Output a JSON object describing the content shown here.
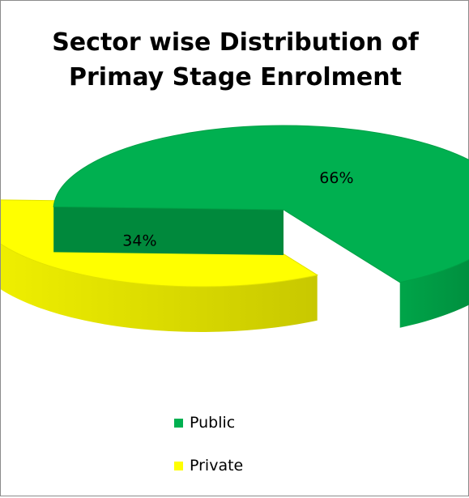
{
  "chart_data": {
    "type": "pie",
    "three_d": true,
    "exploded": true,
    "title": "Sector wise Distribution of Primay Stage Enrolment",
    "title_lines": [
      "Sector wise Distribution of",
      "Primay Stage Enrolment"
    ],
    "slices": [
      {
        "name": "Public",
        "value": 66,
        "label": "66%",
        "color": "#00b050"
      },
      {
        "name": "Private",
        "value": 34,
        "label": "34%",
        "color": "#ffff00"
      }
    ],
    "legend_position": "bottom",
    "show_data_labels": true
  }
}
